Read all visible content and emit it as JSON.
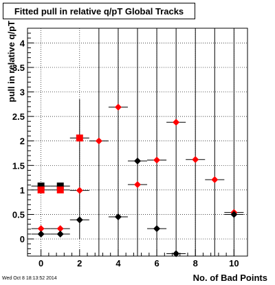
{
  "chart_data": {
    "type": "scatter",
    "title": "Fitted pull in relative q/pT  Global Tracks",
    "xlabel": "No. of Bad Points",
    "ylabel": "pull in relative q/pT",
    "xlim": [
      -0.7,
      10.7
    ],
    "ylim": [
      -0.35,
      4.3
    ],
    "x_ticks": [
      0,
      2,
      4,
      6,
      8,
      10
    ],
    "y_ticks": [
      0,
      0.5,
      1,
      1.5,
      2,
      2.5,
      3,
      3.5,
      4
    ],
    "y_tick_labels": [
      "0",
      "0.5",
      "1",
      "1.5",
      "2",
      "2.5",
      "3",
      "3.5",
      "4"
    ],
    "grid": true,
    "legend": "none",
    "series": [
      {
        "marker": "diamond",
        "color": "#ff0000",
        "x": [
          0,
          1,
          2,
          3,
          4,
          5,
          6,
          7,
          8,
          9,
          10
        ],
        "y": [
          0.21,
          0.21,
          0.99,
          2.0,
          2.69,
          1.11,
          1.61,
          2.38,
          1.62,
          1.21,
          0.54
        ],
        "xerr": [
          0.5,
          0.5,
          0.5,
          0.5,
          0.5,
          0.5,
          0.5,
          0.5,
          0.5,
          0.5,
          0.5
        ]
      },
      {
        "marker": "diamond",
        "color": "#000000",
        "x": [
          0,
          1,
          2,
          4,
          5,
          6,
          7,
          10
        ],
        "y": [
          0.1,
          0.1,
          0.39,
          0.45,
          1.59,
          0.21,
          -0.3,
          0.5
        ],
        "xerr": [
          0.5,
          0.5,
          0.5,
          0.5,
          0.5,
          0.5,
          0.5,
          0.5
        ]
      },
      {
        "marker": "square",
        "color": "#000000",
        "x": [
          0,
          1
        ],
        "y": [
          1.08,
          1.08
        ],
        "xerr": [
          0.5,
          0.5
        ]
      },
      {
        "marker": "square",
        "color": "#ff0000",
        "x": [
          0,
          1,
          2
        ],
        "y": [
          1.0,
          1.0,
          2.06
        ],
        "xerr": [
          0.5,
          0.5,
          0.5
        ]
      }
    ],
    "vertical_error_bars": [
      {
        "x": 2,
        "y_low": 0.0,
        "y_high": 2.85
      },
      {
        "x": 3,
        "y_low": -0.35,
        "y_high": 4.3
      },
      {
        "x": 4,
        "y_low": -0.35,
        "y_high": 4.3
      },
      {
        "x": 5,
        "y_low": -0.35,
        "y_high": 4.3
      },
      {
        "x": 6,
        "y_low": -0.35,
        "y_high": 4.3
      },
      {
        "x": 7,
        "y_low": -0.35,
        "y_high": 4.3
      },
      {
        "x": 8,
        "y_low": -0.35,
        "y_high": 4.3
      },
      {
        "x": 9,
        "y_low": -0.35,
        "y_high": 4.3
      },
      {
        "x": 10,
        "y_low": -0.35,
        "y_high": 4.3
      }
    ]
  },
  "footer": {
    "date_stamp": "Wed Oct  8 18:13:52 2014"
  }
}
